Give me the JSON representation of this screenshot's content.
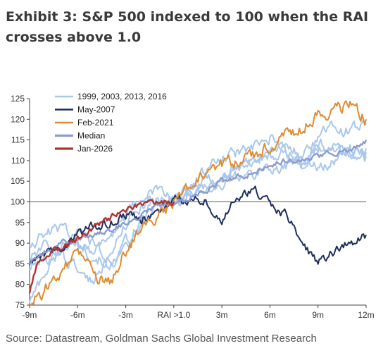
{
  "title": "Exhibit 3: S&P 500 indexed to 100 when the RAI crosses above 1.0",
  "source": "Source: Datastream, Goldman Sachs Global Investment Research",
  "chart_data": {
    "type": "line",
    "title": "Exhibit 3: S&P 500 indexed to 100 when the RAI crosses above 1.0",
    "xlabel": "",
    "ylabel": "",
    "ylim": [
      75,
      125
    ],
    "xlim": [
      -9,
      12
    ],
    "x_ticks": [
      {
        "v": -9,
        "label": "-9m"
      },
      {
        "v": -6,
        "label": "-6m"
      },
      {
        "v": -3,
        "label": "-3m"
      },
      {
        "v": 0,
        "label": "RAI >1.0"
      },
      {
        "v": 3,
        "label": "3m"
      },
      {
        "v": 6,
        "label": "6m"
      },
      {
        "v": 9,
        "label": "9m"
      },
      {
        "v": 12,
        "label": "12m"
      }
    ],
    "y_ticks": [
      75,
      80,
      85,
      90,
      95,
      100,
      105,
      110,
      115,
      120,
      125
    ],
    "legend_position": "top-left",
    "series": [
      {
        "name": "1999, 2003, 2013, 2016",
        "color": "#a9c8ec",
        "width": 2,
        "noise": 1.5,
        "x": [
          -9,
          -8,
          -7,
          -6,
          -5,
          -4,
          -3,
          -2,
          -1,
          0,
          1,
          2,
          3,
          4,
          5,
          6,
          7,
          8,
          9,
          10,
          11,
          12
        ],
        "y": [
          84,
          86,
          89,
          90,
          87,
          85,
          88,
          94,
          99,
          100,
          103,
          105,
          106,
          108,
          110,
          112,
          113,
          112,
          114,
          113,
          112,
          113
        ]
      },
      {
        "name": "",
        "color": "#a9c8ec",
        "width": 2,
        "noise": 1.5,
        "x": [
          -9,
          -8,
          -7,
          -6,
          -5,
          -4,
          -3,
          -2,
          -1,
          0,
          1,
          2,
          3,
          4,
          5,
          6,
          7,
          8,
          9,
          10,
          11,
          12
        ],
        "y": [
          76,
          83,
          89,
          92,
          90,
          84,
          90,
          96,
          101,
          100,
          104,
          108,
          110,
          112,
          113,
          115,
          112,
          109,
          116,
          118,
          117,
          119
        ]
      },
      {
        "name": "",
        "color": "#a9c8ec",
        "width": 2,
        "noise": 1.5,
        "x": [
          -9,
          -8,
          -7,
          -6,
          -5,
          -4,
          -3,
          -2,
          -1,
          0,
          1,
          2,
          3,
          4,
          5,
          6,
          7,
          8,
          9,
          10,
          11,
          12
        ],
        "y": [
          90,
          92,
          94,
          91,
          88,
          92,
          96,
          101,
          103,
          100,
          102,
          104,
          106,
          109,
          110,
          112,
          111,
          108,
          112,
          113,
          111,
          112
        ]
      },
      {
        "name": "",
        "color": "#a9c8ec",
        "width": 2,
        "noise": 1.5,
        "x": [
          -9,
          -8,
          -7,
          -6,
          -5,
          -4,
          -3,
          -2,
          -1,
          0,
          1,
          2,
          3,
          4,
          5,
          6,
          7,
          8,
          9,
          10,
          11,
          12
        ],
        "y": [
          86,
          89,
          87,
          84,
          80,
          88,
          95,
          99,
          100,
          100,
          101,
          103,
          104,
          106,
          107,
          108,
          109,
          110,
          108,
          110,
          113,
          111
        ]
      },
      {
        "name": "May-2007",
        "color": "#1f2d5c",
        "width": 2,
        "noise": 1.2,
        "x": [
          -9,
          -8,
          -7,
          -6,
          -5,
          -4,
          -3,
          -2,
          -1,
          0,
          1,
          2,
          3,
          4,
          5,
          6,
          7,
          8,
          9,
          10,
          11,
          12
        ],
        "y": [
          85,
          87,
          89,
          92,
          94,
          95,
          97,
          96,
          97,
          100,
          101,
          100,
          96,
          101,
          103,
          99,
          97,
          90,
          85,
          88,
          90,
          92
        ]
      },
      {
        "name": "Feb-2021",
        "color": "#e08b2f",
        "width": 2,
        "noise": 1.6,
        "x": [
          -9,
          -8,
          -7,
          -6,
          -5,
          -4,
          -3,
          -2,
          -1,
          0,
          1,
          2,
          3,
          4,
          5,
          6,
          7,
          8,
          9,
          10,
          11,
          12
        ],
        "y": [
          75,
          79,
          83,
          88,
          82,
          80,
          88,
          94,
          96,
          100,
          104,
          106,
          109,
          110,
          111,
          114,
          116,
          118,
          121,
          122,
          124,
          120
        ]
      },
      {
        "name": "Median",
        "color": "#8d9ccc",
        "width": 2.4,
        "noise": 0.7,
        "x": [
          -9,
          -8,
          -7,
          -6,
          -5,
          -4,
          -3,
          -2,
          -1,
          0,
          1,
          2,
          3,
          4,
          5,
          6,
          7,
          8,
          9,
          10,
          11,
          12
        ],
        "y": [
          85,
          88,
          90,
          91,
          92,
          93,
          95,
          97,
          99,
          100,
          101,
          103,
          105,
          106,
          107,
          109,
          110,
          110,
          111,
          112,
          113,
          115
        ]
      },
      {
        "name": "Jan-2026",
        "color": "#b3332f",
        "width": 2.4,
        "noise": 0.8,
        "x": [
          -9,
          -8.5,
          -8,
          -7,
          -6,
          -5,
          -4,
          -3,
          -2,
          -1,
          0
        ],
        "y": [
          78,
          85,
          87,
          89,
          91,
          94,
          96,
          98,
          99,
          100,
          100
        ]
      }
    ]
  }
}
